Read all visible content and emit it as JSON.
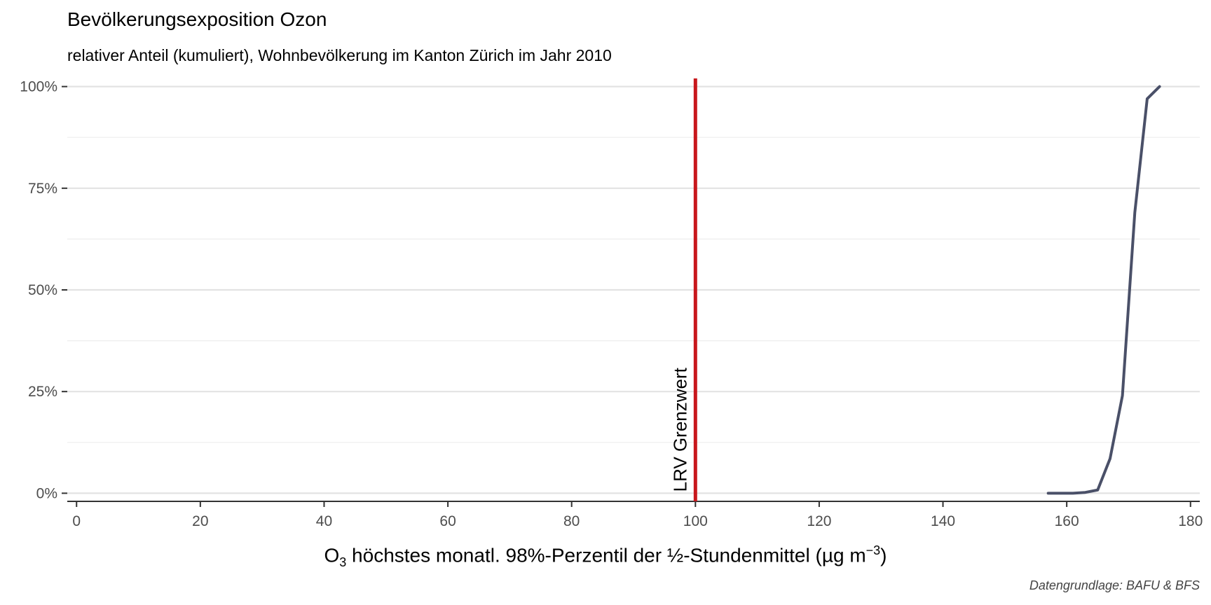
{
  "chart_data": {
    "type": "line",
    "title": "Bevölkerungsexposition Ozon",
    "subtitle": "relativer Anteil (kumuliert), Wohnbevölkerung im Kanton Zürich im Jahr 2010",
    "xlabel": {
      "prefix": "O",
      "sub": "3",
      "main": " höchstes monatl. 98%-Perzentil der ½-Stundenmittel (µg m",
      "sup": "−3",
      "suffix": ")"
    },
    "ylabel": "",
    "caption": "Datengrundlage: BAFU & BFS",
    "xlim": [
      -1.5,
      181.5
    ],
    "ylim": [
      -0.02,
      1.02
    ],
    "x_ticks": [
      0,
      20,
      40,
      60,
      80,
      100,
      120,
      140,
      160,
      180
    ],
    "y_ticks": [
      0,
      0.25,
      0.5,
      0.75,
      1.0
    ],
    "y_tick_labels": [
      "0%",
      "25%",
      "50%",
      "75%",
      "100%"
    ],
    "y_minor_ticks": [
      0.125,
      0.375,
      0.625,
      0.875
    ],
    "grid": true,
    "series": [
      {
        "color": "#4a5068",
        "x": [
          157,
          159,
          161,
          163,
          165,
          167,
          169,
          171,
          173,
          175
        ],
        "y": [
          0.0,
          0.0,
          0.0,
          0.002,
          0.008,
          0.085,
          0.24,
          0.69,
          0.97,
          1.0
        ]
      }
    ],
    "reference_line": {
      "x": 100,
      "color": "#c8171c",
      "label": "LRV Grenzwert"
    }
  }
}
